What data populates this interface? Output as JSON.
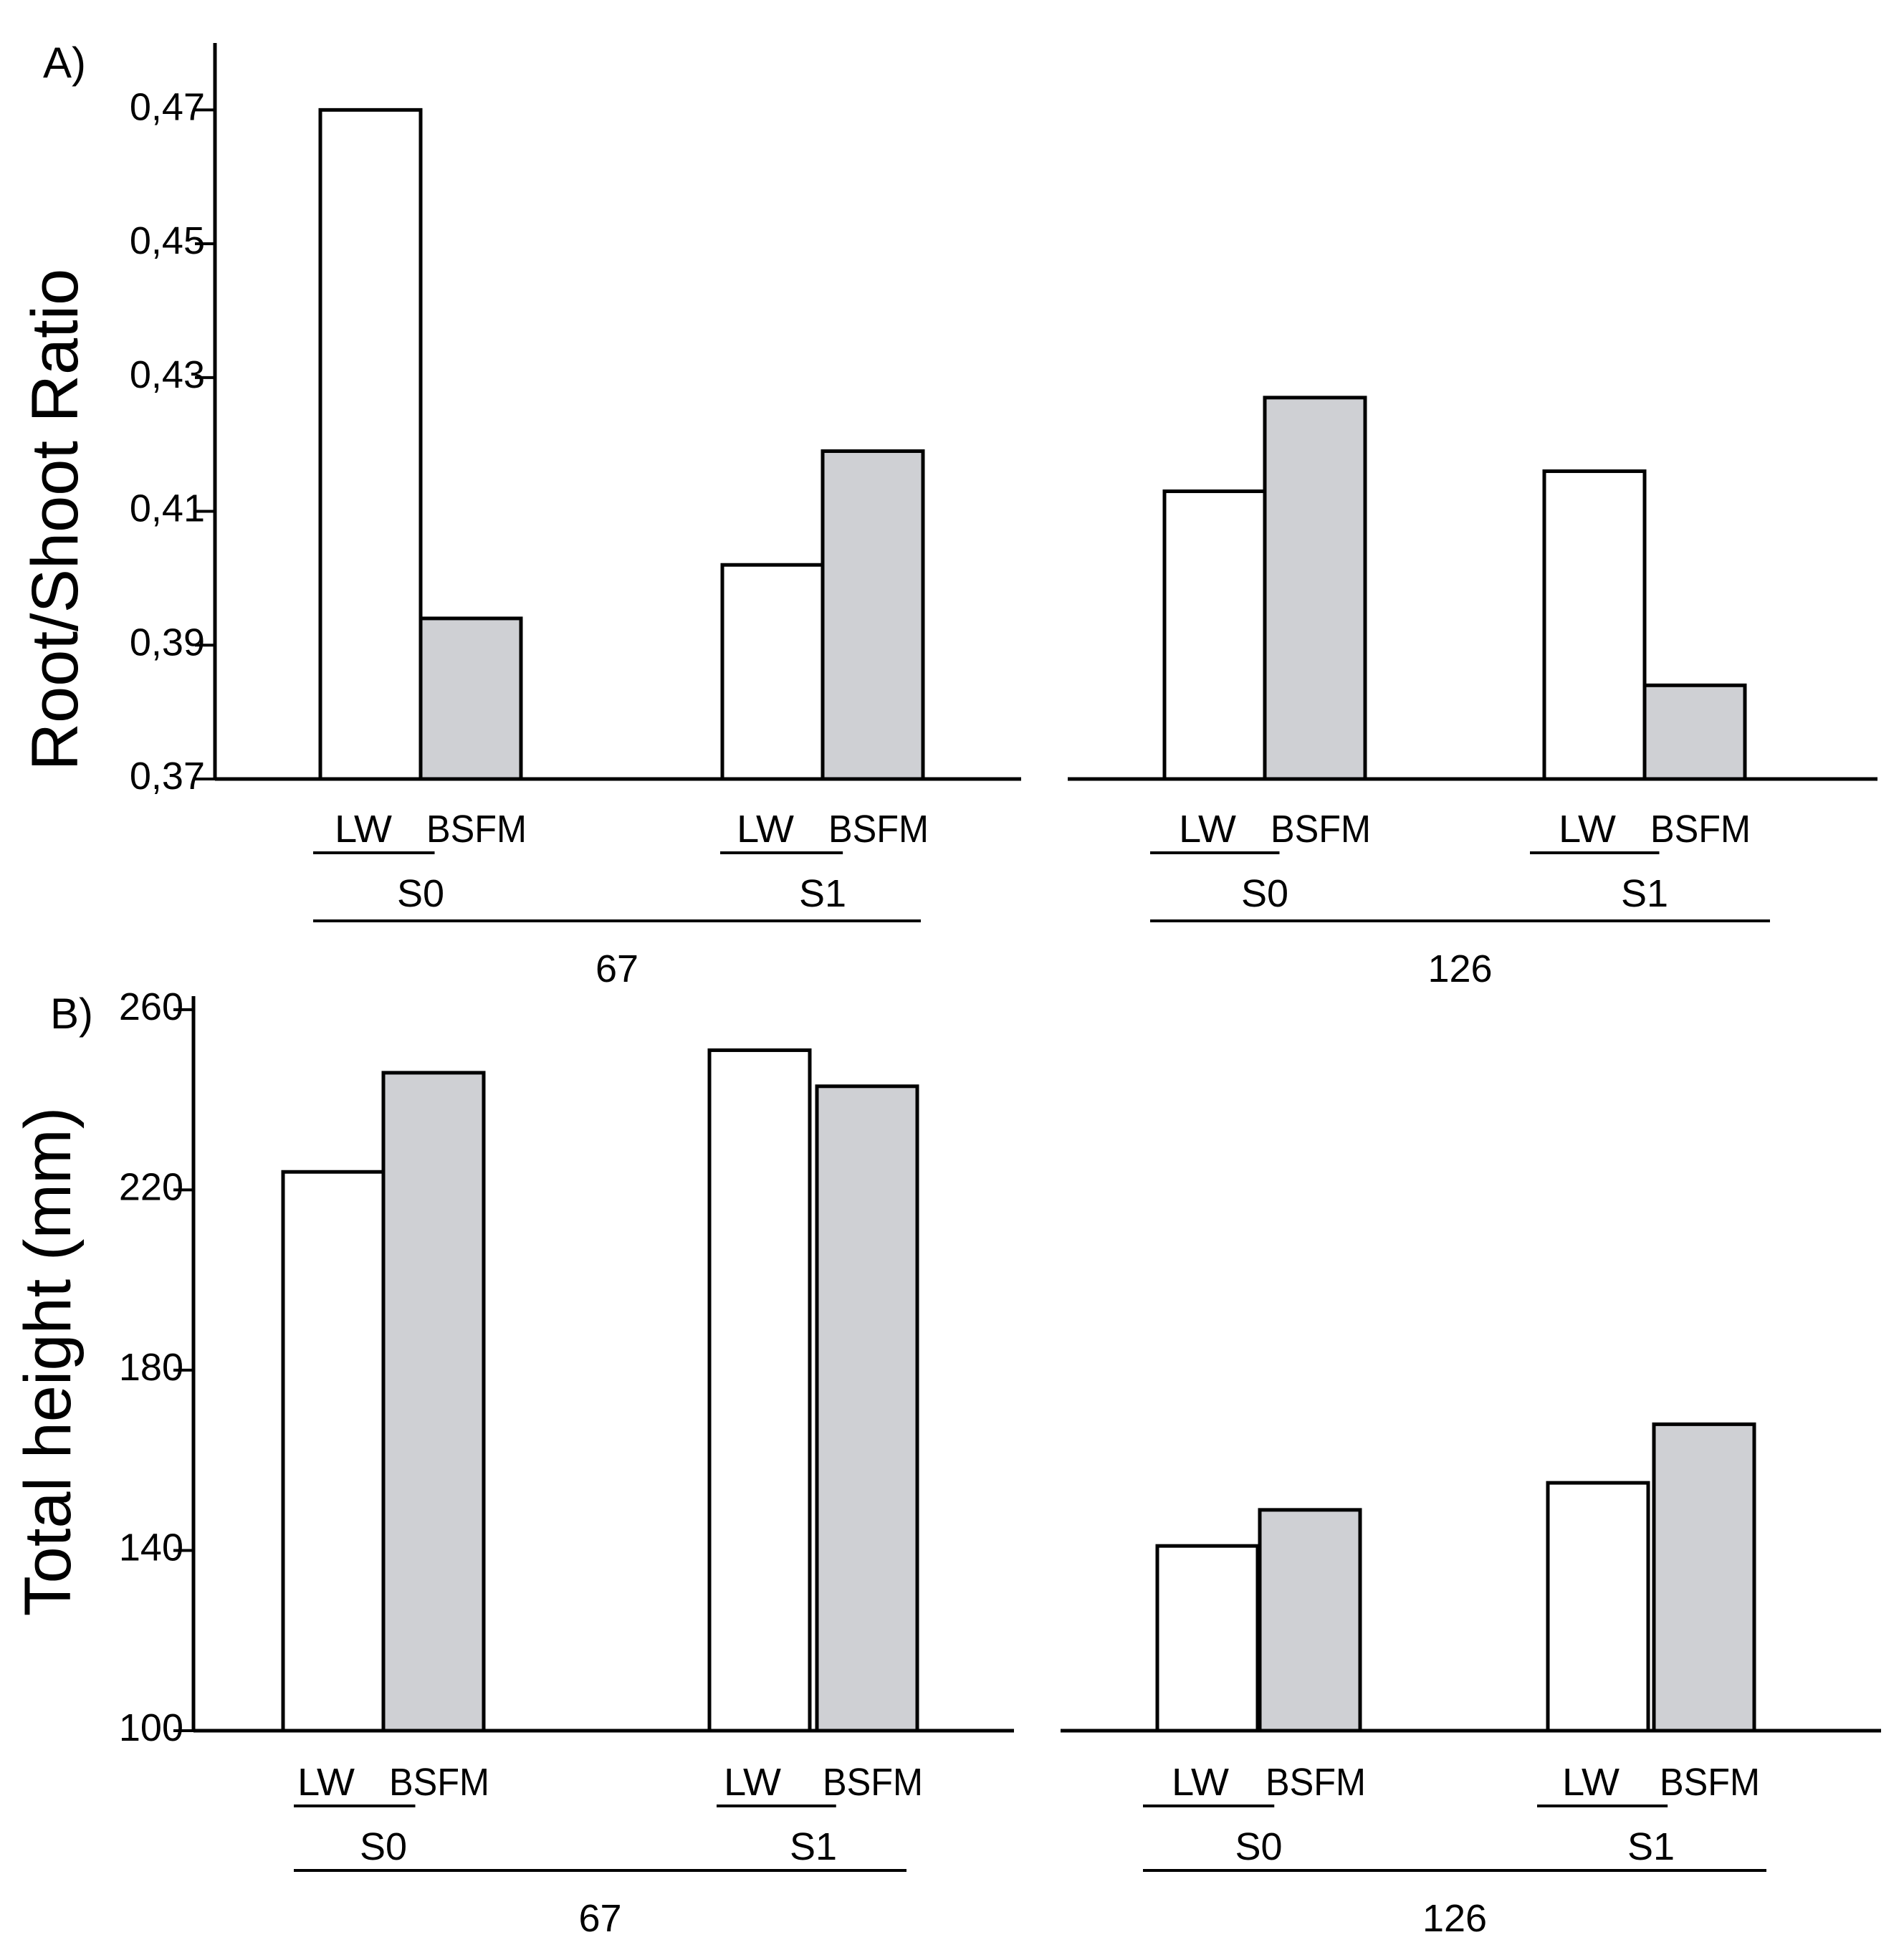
{
  "chart_data": [
    {
      "type": "bar",
      "panel": "A)",
      "ylabel": "Root/Shoot Ratio",
      "yticks": [
        "0,37",
        "0,39",
        "0,41",
        "0,43",
        "0,45",
        "0,47"
      ],
      "ylim": [
        0.37,
        0.48
      ],
      "categories": [
        "LW",
        "BSFM"
      ],
      "groups": [
        {
          "super": "67",
          "label": "S0",
          "values": [
            0.47,
            0.394
          ]
        },
        {
          "super": "67",
          "label": "S1",
          "values": [
            0.402,
            0.419
          ]
        },
        {
          "super": "126",
          "label": "S0",
          "values": [
            0.413,
            0.427
          ]
        },
        {
          "super": "126",
          "label": "S1",
          "values": [
            0.416,
            0.384
          ]
        }
      ],
      "super_groups": [
        "67",
        "126"
      ],
      "series_colors": {
        "LW": "#ffffff",
        "BSFM": "#cfd0d4"
      },
      "grid": false
    },
    {
      "type": "bar",
      "panel": "B)",
      "ylabel": "Total height (mm)",
      "yticks": [
        "100",
        "140",
        "180",
        "220",
        "260"
      ],
      "ylim": [
        100,
        263
      ],
      "categories": [
        "LW",
        "BSFM"
      ],
      "groups": [
        {
          "super": "67",
          "label": "S0",
          "values": [
            224,
            246
          ]
        },
        {
          "super": "67",
          "label": "S1",
          "values": [
            251,
            243
          ]
        },
        {
          "super": "126",
          "label": "S0",
          "values": [
            141,
            149
          ]
        },
        {
          "super": "126",
          "label": "S1",
          "values": [
            155,
            168
          ]
        }
      ],
      "super_groups": [
        "67",
        "126"
      ],
      "series_colors": {
        "LW": "#ffffff",
        "BSFM": "#cfd0d4"
      },
      "grid": false
    }
  ]
}
